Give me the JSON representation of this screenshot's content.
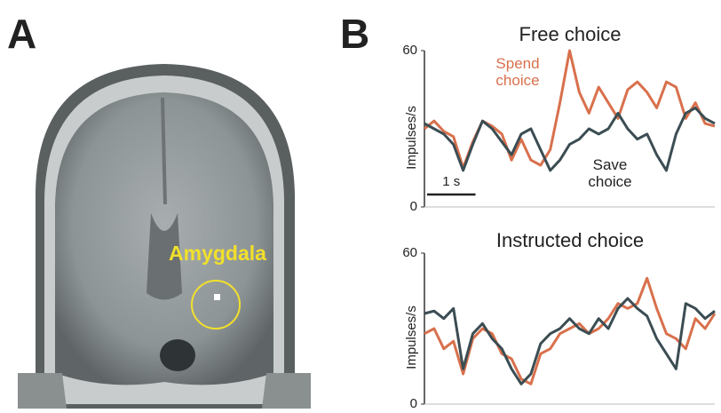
{
  "panels": {
    "a": {
      "label": "A",
      "annotation": "Amygdala"
    },
    "b": {
      "label": "B"
    }
  },
  "chart_data": [
    {
      "type": "line",
      "title": "Free choice",
      "y_label": "Impulses/s",
      "x": [
        0,
        0.2,
        0.4,
        0.6,
        0.8,
        1.0,
        1.2,
        1.4,
        1.6,
        1.8,
        2.0,
        2.2,
        2.4,
        2.6,
        2.8,
        3.0,
        3.2,
        3.4,
        3.6,
        3.8,
        4.0,
        4.2,
        4.4,
        4.6,
        4.8,
        5.0,
        5.2,
        5.4,
        5.6,
        5.8,
        6.0
      ],
      "xlim": [
        0,
        6
      ],
      "ylim": [
        0,
        60
      ],
      "yticks": [
        0,
        60
      ],
      "scale_bar": {
        "label": "1 s",
        "value": 1
      },
      "series": [
        {
          "name": "Spend choice",
          "color": "#d8704c",
          "values": [
            30,
            33,
            29,
            27,
            15,
            25,
            33,
            31,
            28,
            18,
            26,
            18,
            16,
            22,
            40,
            60,
            44,
            36,
            46,
            40,
            34,
            45,
            48,
            44,
            38,
            48,
            46,
            34,
            40,
            32,
            31
          ]
        },
        {
          "name": "Save choice",
          "color": "#3b4d53",
          "values": [
            32,
            30,
            28,
            24,
            14,
            24,
            33,
            30,
            25,
            20,
            28,
            30,
            22,
            14,
            18,
            24,
            26,
            30,
            28,
            30,
            36,
            30,
            26,
            28,
            20,
            14,
            28,
            36,
            38,
            34,
            32
          ]
        }
      ]
    },
    {
      "type": "line",
      "title": "Instructed choice",
      "y_label": "Impulses/s",
      "x": [
        0,
        0.2,
        0.4,
        0.6,
        0.8,
        1.0,
        1.2,
        1.4,
        1.6,
        1.8,
        2.0,
        2.2,
        2.4,
        2.6,
        2.8,
        3.0,
        3.2,
        3.4,
        3.6,
        3.8,
        4.0,
        4.2,
        4.4,
        4.6,
        4.8,
        5.0,
        5.2,
        5.4,
        5.6,
        5.8,
        6.0
      ],
      "xlim": [
        0,
        6
      ],
      "ylim": [
        0,
        60
      ],
      "yticks": [
        0,
        60
      ],
      "series": [
        {
          "color": "#d8704c",
          "values": [
            28,
            30,
            22,
            25,
            12,
            26,
            30,
            28,
            20,
            18,
            10,
            8,
            20,
            22,
            28,
            30,
            32,
            28,
            30,
            34,
            40,
            38,
            40,
            50,
            38,
            28,
            26,
            22,
            34,
            30,
            36
          ]
        },
        {
          "color": "#3b4d53",
          "values": [
            36,
            37,
            34,
            38,
            14,
            28,
            32,
            26,
            22,
            14,
            8,
            12,
            24,
            28,
            30,
            34,
            30,
            28,
            34,
            30,
            38,
            42,
            38,
            35,
            26,
            20,
            14,
            40,
            38,
            34,
            37
          ]
        }
      ]
    }
  ]
}
